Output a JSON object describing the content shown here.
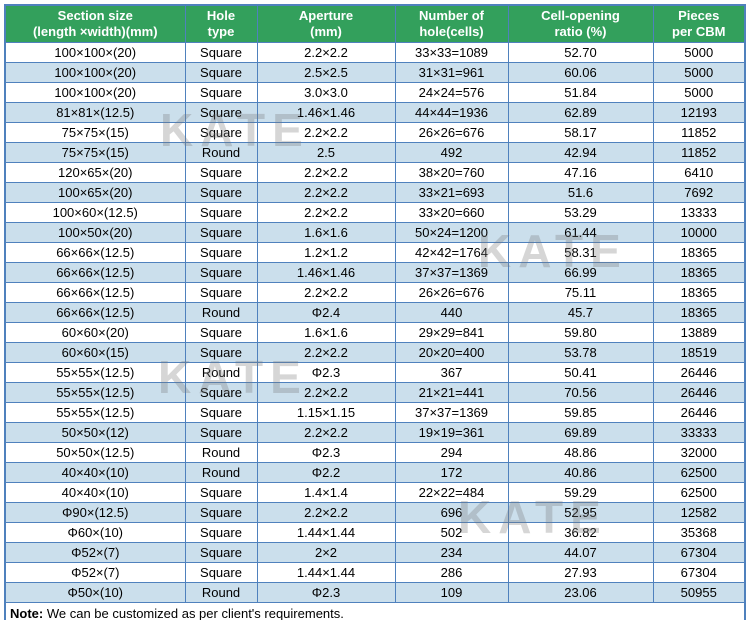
{
  "colors": {
    "header_bg": "#33a05c",
    "header_text": "#ffffff",
    "row_alt_bg": "#cbdfec",
    "grid_border": "#4f81bd",
    "bottom_border": "#17365d"
  },
  "watermark": {
    "text": "KATE"
  },
  "table": {
    "headers": [
      {
        "line1": "Section size",
        "line2": "(length ×width)(mm)"
      },
      {
        "line1": "Hole",
        "line2": "type"
      },
      {
        "line1": "Aperture",
        "line2": "(mm)"
      },
      {
        "line1": "Number of",
        "line2": "hole(cells)"
      },
      {
        "line1": "Cell-opening",
        "line2": "ratio (%)"
      },
      {
        "line1": "Pieces",
        "line2": "per CBM"
      }
    ],
    "rows": [
      [
        "100×100×(20)",
        "Square",
        "2.2×2.2",
        "33×33=1089",
        "52.70",
        "5000"
      ],
      [
        "100×100×(20)",
        "Square",
        "2.5×2.5",
        "31×31=961",
        "60.06",
        "5000"
      ],
      [
        "100×100×(20)",
        "Square",
        "3.0×3.0",
        "24×24=576",
        "51.84",
        "5000"
      ],
      [
        "81×81×(12.5)",
        "Square",
        "1.46×1.46",
        "44×44=1936",
        "62.89",
        "12193"
      ],
      [
        "75×75×(15)",
        "Square",
        "2.2×2.2",
        "26×26=676",
        "58.17",
        "11852"
      ],
      [
        "75×75×(15)",
        "Round",
        "2.5",
        "492",
        "42.94",
        "11852"
      ],
      [
        "120×65×(20)",
        "Square",
        "2.2×2.2",
        "38×20=760",
        "47.16",
        "6410"
      ],
      [
        "100×65×(20)",
        "Square",
        "2.2×2.2",
        "33×21=693",
        "51.6",
        "7692"
      ],
      [
        "100×60×(12.5)",
        "Square",
        "2.2×2.2",
        "33×20=660",
        "53.29",
        "13333"
      ],
      [
        "100×50×(20)",
        "Square",
        "1.6×1.6",
        "50×24=1200",
        "61.44",
        "10000"
      ],
      [
        "66×66×(12.5)",
        "Square",
        "1.2×1.2",
        "42×42=1764",
        "58.31",
        "18365"
      ],
      [
        "66×66×(12.5)",
        "Square",
        "1.46×1.46",
        "37×37=1369",
        "66.99",
        "18365"
      ],
      [
        "66×66×(12.5)",
        "Square",
        "2.2×2.2",
        "26×26=676",
        "75.11",
        "18365"
      ],
      [
        "66×66×(12.5)",
        "Round",
        "Φ2.4",
        "440",
        "45.7",
        "18365"
      ],
      [
        "60×60×(20)",
        "Square",
        "1.6×1.6",
        "29×29=841",
        "59.80",
        "13889"
      ],
      [
        "60×60×(15)",
        "Square",
        "2.2×2.2",
        "20×20=400",
        "53.78",
        "18519"
      ],
      [
        "55×55×(12.5)",
        "Round",
        "Φ2.3",
        "367",
        "50.41",
        "26446"
      ],
      [
        "55×55×(12.5)",
        "Square",
        "2.2×2.2",
        "21×21=441",
        "70.56",
        "26446"
      ],
      [
        "55×55×(12.5)",
        "Square",
        "1.15×1.15",
        "37×37=1369",
        "59.85",
        "26446"
      ],
      [
        "50×50×(12)",
        "Square",
        "2.2×2.2",
        "19×19=361",
        "69.89",
        "33333"
      ],
      [
        "50×50×(12.5)",
        "Round",
        "Φ2.3",
        "294",
        "48.86",
        "32000"
      ],
      [
        "40×40×(10)",
        "Round",
        "Φ2.2",
        "172",
        "40.86",
        "62500"
      ],
      [
        "40×40×(10)",
        "Square",
        "1.4×1.4",
        "22×22=484",
        "59.29",
        "62500"
      ],
      [
        "Φ90×(12.5)",
        "Square",
        "2.2×2.2",
        "696",
        "52.95",
        "12582"
      ],
      [
        "Φ60×(10)",
        "Square",
        "1.44×1.44",
        "502",
        "36.82",
        "35368"
      ],
      [
        "Φ52×(7)",
        "Square",
        "2×2",
        "234",
        "44.07",
        "67304"
      ],
      [
        "Φ52×(7)",
        "Square",
        "1.44×1.44",
        "286",
        "27.93",
        "67304"
      ],
      [
        "Φ50×(10)",
        "Round",
        "Φ2.3",
        "109",
        "23.06",
        "50955"
      ]
    ]
  },
  "note": {
    "label": "Note:",
    "text": " We can be customized as per client's requirements."
  }
}
